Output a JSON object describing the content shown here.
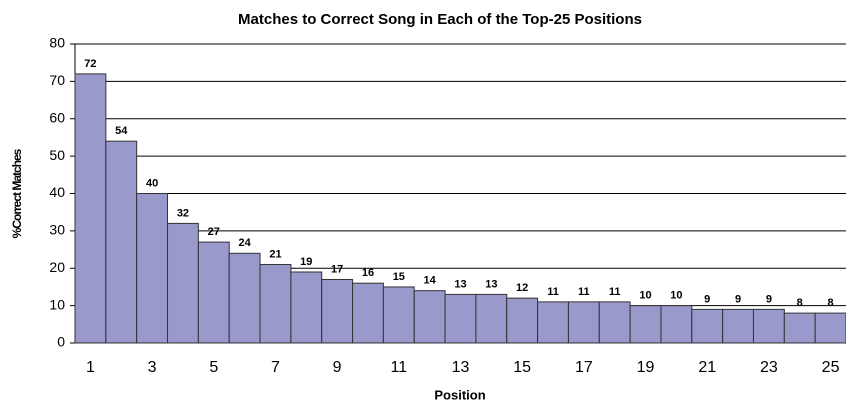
{
  "chart_data": {
    "type": "bar",
    "title": "Matches to Correct Song in Each of the Top-25 Positions",
    "x_label": "Position",
    "y_label": "%Correct Matches",
    "categories": [
      "1",
      null,
      "3",
      null,
      "5",
      null,
      "7",
      null,
      "9",
      null,
      "11",
      null,
      "13",
      null,
      "15",
      null,
      "17",
      null,
      "19",
      null,
      "21",
      null,
      "23",
      null,
      "25"
    ],
    "values": [
      72,
      54,
      40,
      32,
      27,
      24,
      21,
      19,
      17,
      16,
      15,
      14,
      13,
      13,
      12,
      11,
      11,
      11,
      10,
      10,
      9,
      9,
      9,
      8,
      8
    ],
    "color": "#9999cc",
    "ylim": [
      0,
      80
    ],
    "yticks": [
      0,
      10,
      20,
      30,
      40,
      50,
      60,
      70,
      80
    ],
    "grid": true
  }
}
